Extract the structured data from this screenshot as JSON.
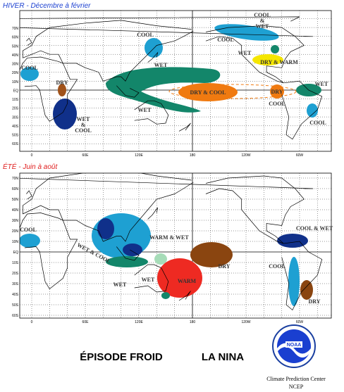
{
  "panels": [
    {
      "title": "HIVER - Décembre à février",
      "lat_labels": [
        "70N",
        "60N",
        "50N",
        "40N",
        "30N",
        "20N",
        "10N",
        "EQ",
        "10S",
        "20S",
        "30S",
        "40S",
        "50S",
        "60S"
      ],
      "lon_labels": [
        "0",
        "60E",
        "120E",
        "180",
        "120W",
        "60W"
      ],
      "regions": [
        {
          "lines": [
            "COOL"
          ]
        },
        {
          "lines": [
            "COOL",
            "&",
            "WET"
          ]
        },
        {
          "lines": [
            "COOL"
          ]
        },
        {
          "lines": [
            "WET"
          ]
        },
        {
          "lines": [
            "DRY & WARM"
          ]
        },
        {
          "lines": [
            "COOL"
          ]
        },
        {
          "lines": [
            "WET"
          ]
        },
        {
          "lines": [
            "DRY"
          ]
        },
        {
          "lines": [
            "DRY & COOL"
          ]
        },
        {
          "lines": [
            "DRY"
          ]
        },
        {
          "lines": [
            "WET"
          ]
        },
        {
          "lines": [
            "COOL"
          ]
        },
        {
          "lines": [
            "WET"
          ]
        },
        {
          "lines": [
            "WET",
            "&",
            "COOL"
          ]
        },
        {
          "lines": [
            "COOL"
          ]
        }
      ]
    },
    {
      "title": "ÉTÉ - Juin à août",
      "lat_labels": [
        "70N",
        "60N",
        "50N",
        "40N",
        "30N",
        "20N",
        "10N",
        "EQ",
        "10S",
        "20S",
        "30S",
        "40S",
        "50S",
        "60S"
      ],
      "lon_labels": [
        "0",
        "60E",
        "120E",
        "180",
        "120W",
        "60W"
      ],
      "regions": [
        {
          "lines": [
            "COOL"
          ]
        },
        {
          "lines": [
            "WET & COOL"
          ]
        },
        {
          "lines": [
            "WARM & WET"
          ]
        },
        {
          "lines": [
            "WET"
          ]
        },
        {
          "lines": [
            "WET"
          ]
        },
        {
          "lines": [
            "WARM"
          ]
        },
        {
          "lines": [
            "DRY"
          ]
        },
        {
          "lines": [
            "COOL & WET"
          ]
        },
        {
          "lines": [
            "COOL"
          ]
        },
        {
          "lines": [
            "DRY"
          ]
        }
      ]
    }
  ],
  "footer": {
    "episode": "ÉPISODE FROID",
    "name": "LA NINA",
    "logo": "NOAA",
    "center": "Climate Prediction Center",
    "agency": "NCEP"
  }
}
